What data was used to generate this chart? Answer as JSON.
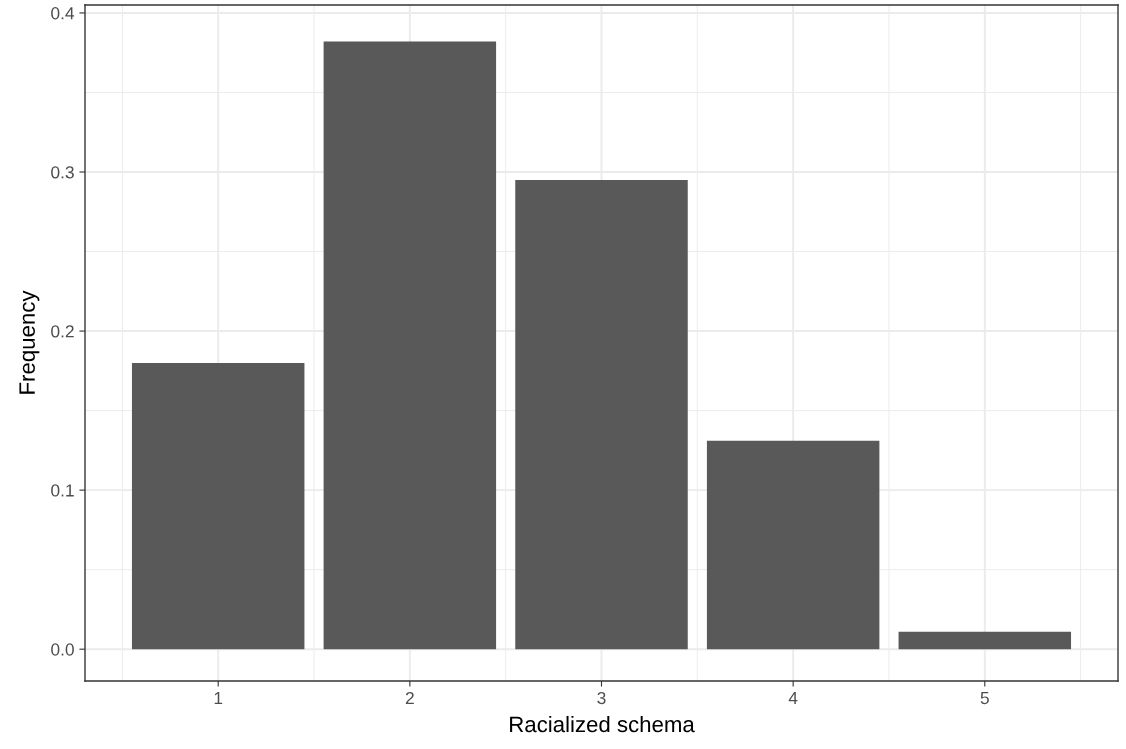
{
  "chart_data": {
    "type": "bar",
    "xlabel": "Racialized schema",
    "ylabel": "Frequency",
    "x": [
      1,
      2,
      3,
      4,
      5
    ],
    "values": [
      0.18,
      0.382,
      0.295,
      0.131,
      0.011
    ],
    "color": "#595959",
    "xlim": [
      0.305,
      5.695
    ],
    "xticks": [
      {
        "value": 0.5,
        "label": null
      },
      1,
      {
        "value": 1.5,
        "label": null
      },
      2,
      {
        "value": 2.5,
        "label": null
      },
      3,
      {
        "value": 3.5,
        "label": null
      },
      4,
      {
        "value": 4.5,
        "label": null
      },
      5,
      {
        "value": 5.5,
        "label": null
      }
    ],
    "ylim": [
      -0.02,
      0.405
    ],
    "yticks": [
      {
        "value": 0.0,
        "label": "0.0"
      },
      {
        "value": 0.05,
        "label": null
      },
      {
        "value": 0.1,
        "label": "0.1"
      },
      {
        "value": 0.15,
        "label": null
      },
      {
        "value": 0.2,
        "label": "0.2"
      },
      {
        "value": 0.25,
        "label": null
      },
      {
        "value": 0.3,
        "label": "0.3"
      },
      {
        "value": 0.35,
        "label": null
      },
      {
        "value": 0.4,
        "label": "0.4"
      }
    ],
    "grid": true
  }
}
